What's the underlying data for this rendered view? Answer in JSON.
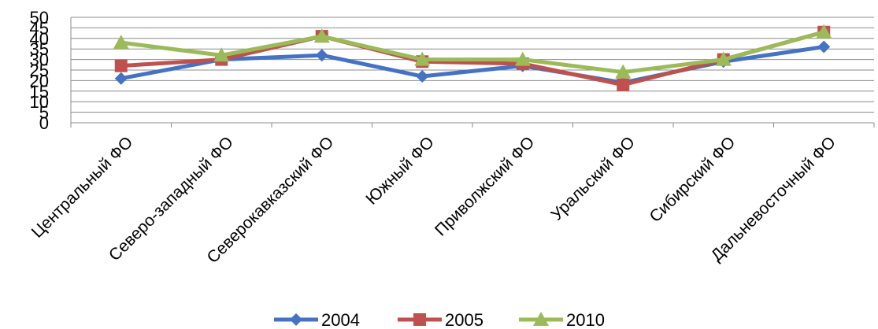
{
  "chart_data": {
    "type": "line",
    "title": "",
    "xlabel": "",
    "ylabel": "",
    "ylim": [
      0,
      50
    ],
    "yticks": [
      0,
      5,
      10,
      15,
      20,
      25,
      30,
      35,
      40,
      45,
      50
    ],
    "grid": true,
    "legend_position": "bottom",
    "categories": [
      "Центральный ФО",
      "Северо-западный ФО",
      "Северокавказский ФО",
      "Южный ФО",
      "Приволжский ФО",
      "Уральский ФО",
      "Сибирский ФО",
      "Дальневосточный ФО"
    ],
    "series": [
      {
        "name": "2004",
        "color": "#4472C4",
        "marker": "diamond",
        "values": [
          21,
          30,
          32,
          22,
          27,
          19,
          29,
          36
        ]
      },
      {
        "name": "2005",
        "color": "#C0504D",
        "marker": "square",
        "values": [
          27,
          30,
          41,
          29,
          28,
          18,
          30,
          43
        ]
      },
      {
        "name": "2010",
        "color": "#9BBB59",
        "marker": "triangle",
        "values": [
          38,
          32,
          41,
          30,
          30,
          24,
          30,
          43
        ]
      }
    ]
  }
}
